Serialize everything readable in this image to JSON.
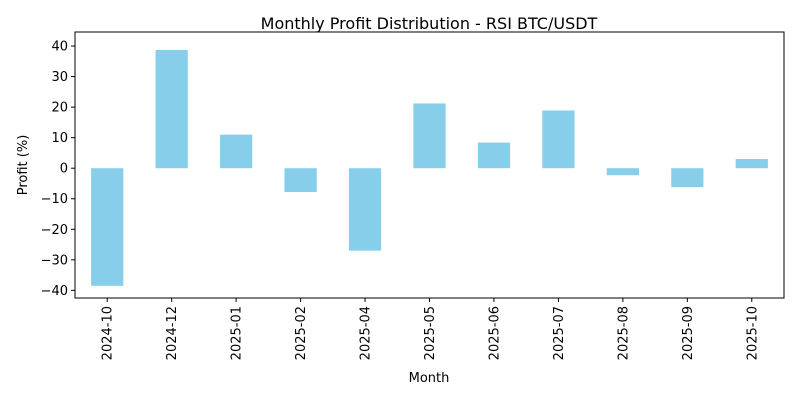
{
  "chart_data": {
    "type": "bar",
    "title": "Monthly Profit Distribution - RSI BTC/USDT",
    "xlabel": "Month",
    "ylabel": "Profit (%)",
    "categories": [
      "2024-10",
      "2024-12",
      "2025-01",
      "2025-02",
      "2025-04",
      "2025-05",
      "2025-06",
      "2025-07",
      "2025-08",
      "2025-09",
      "2025-10"
    ],
    "values": [
      -38.5,
      38.7,
      11.0,
      -7.8,
      -27.0,
      21.2,
      8.4,
      18.9,
      -2.3,
      -6.2,
      3.0
    ],
    "ylim": [
      -42.5,
      44.6
    ],
    "yticks": [
      -40,
      -30,
      -20,
      -10,
      0,
      10,
      20,
      30,
      40
    ],
    "ytick_labels": [
      "−40",
      "−30",
      "−20",
      "−10",
      "0",
      "10",
      "20",
      "30",
      "40"
    ],
    "bar_color": "#87ceeb",
    "grid": false,
    "legend": "none"
  }
}
